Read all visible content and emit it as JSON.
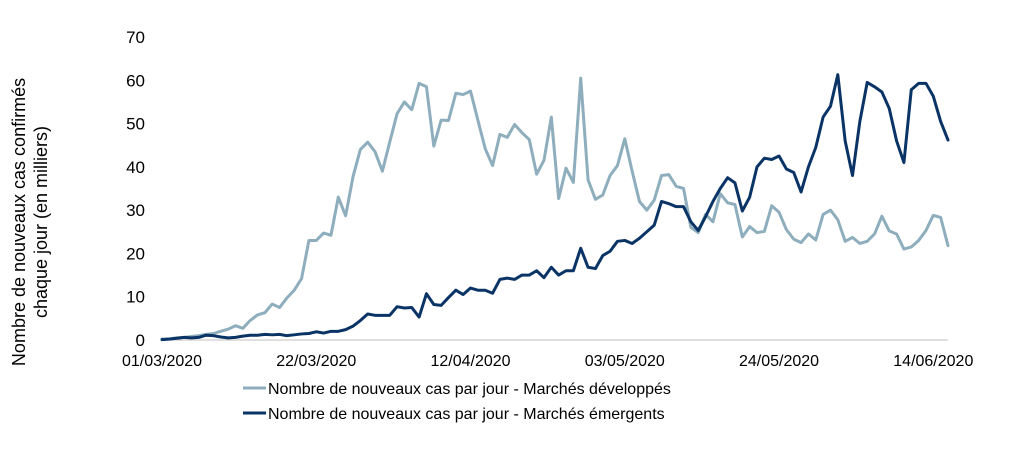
{
  "chart_data": {
    "type": "line",
    "title": "",
    "xlabel": "",
    "ylabel_lines": [
      "Nombre de nouveaux cas confirmés",
      "chaque jour (en milliers)"
    ],
    "x_start": "01/03/2020",
    "x_end": "16/06/2020",
    "x_tick_labels": [
      "01/03/2020",
      "22/03/2020",
      "12/04/2020",
      "03/05/2020",
      "24/05/2020",
      "14/06/2020"
    ],
    "x_tick_dates": [
      "2020-03-01",
      "2020-03-22",
      "2020-04-12",
      "2020-05-03",
      "2020-05-24",
      "2020-06-14"
    ],
    "ylim": [
      0,
      70
    ],
    "y_ticks": [
      0,
      10,
      20,
      30,
      40,
      50,
      60,
      70
    ],
    "grid": false,
    "legend_position": "bottom",
    "series": [
      {
        "name": "Nombre de nouveaux cas par jour - Marchés développés",
        "color": "#8eaebd",
        "values": [
          0.2,
          0.3,
          0.5,
          0.6,
          0.8,
          1.0,
          1.3,
          1.5,
          2.0,
          2.5,
          3.3,
          2.7,
          4.5,
          5.8,
          6.3,
          8.3,
          7.5,
          9.7,
          11.5,
          14.2,
          23.0,
          23.0,
          24.7,
          24.2,
          33.0,
          28.7,
          37.7,
          44.0,
          45.7,
          43.5,
          39.0,
          45.7,
          52.3,
          55.0,
          53.2,
          59.3,
          58.5,
          44.8,
          50.8,
          50.7,
          57.0,
          56.7,
          57.5,
          50.8,
          44.2,
          40.3,
          47.5,
          46.8,
          49.8,
          47.9,
          46.3,
          38.3,
          41.5,
          51.5,
          32.7,
          39.7,
          36.4,
          60.5,
          37.0,
          32.5,
          33.5,
          38.0,
          40.3,
          46.5,
          39.0,
          32.0,
          30.0,
          32.3,
          38.0,
          38.2,
          35.5,
          35.0,
          26.0,
          24.8,
          29.0,
          27.3,
          33.8,
          31.7,
          31.3,
          23.8,
          26.2,
          24.8,
          25.1,
          31.0,
          29.5,
          25.5,
          23.3,
          22.5,
          24.5,
          23.1,
          29.0,
          30.0,
          27.8,
          22.8,
          23.7,
          22.3,
          22.8,
          24.5,
          28.6,
          25.2,
          24.5,
          21.0,
          21.5,
          23.0,
          25.3,
          28.8,
          28.3,
          21.8
        ]
      },
      {
        "name": "Nombre de nouveaux cas par jour - Marchés émergents",
        "color": "#0b3466",
        "values": [
          0.1,
          0.2,
          0.4,
          0.6,
          0.5,
          0.6,
          1.1,
          1.0,
          0.7,
          0.5,
          0.6,
          0.9,
          1.1,
          1.1,
          1.3,
          1.2,
          1.3,
          1.0,
          1.2,
          1.4,
          1.5,
          1.9,
          1.6,
          2.0,
          2.0,
          2.4,
          3.2,
          4.5,
          6.0,
          5.7,
          5.7,
          5.7,
          7.7,
          7.4,
          7.5,
          5.3,
          10.7,
          8.2,
          8.0,
          9.8,
          11.5,
          10.5,
          12.0,
          11.5,
          11.5,
          10.8,
          14.0,
          14.3,
          14.0,
          15.0,
          15.0,
          16.0,
          14.4,
          16.8,
          15.0,
          16.0,
          16.0,
          21.2,
          16.8,
          16.5,
          19.5,
          20.5,
          22.8,
          23.0,
          22.3,
          23.5,
          25.0,
          26.5,
          32.0,
          31.5,
          30.8,
          30.8,
          27.3,
          25.3,
          28.5,
          32.0,
          35.0,
          37.5,
          36.3,
          29.8,
          33.0,
          40.0,
          42.0,
          41.7,
          42.5,
          39.5,
          38.7,
          34.2,
          40.0,
          44.5,
          51.5,
          54.0,
          61.3,
          46.0,
          38.0,
          50.5,
          59.5,
          58.5,
          57.3,
          53.5,
          46.0,
          41.0,
          57.8,
          59.3,
          59.3,
          56.3,
          50.5,
          46.2
        ]
      }
    ]
  }
}
